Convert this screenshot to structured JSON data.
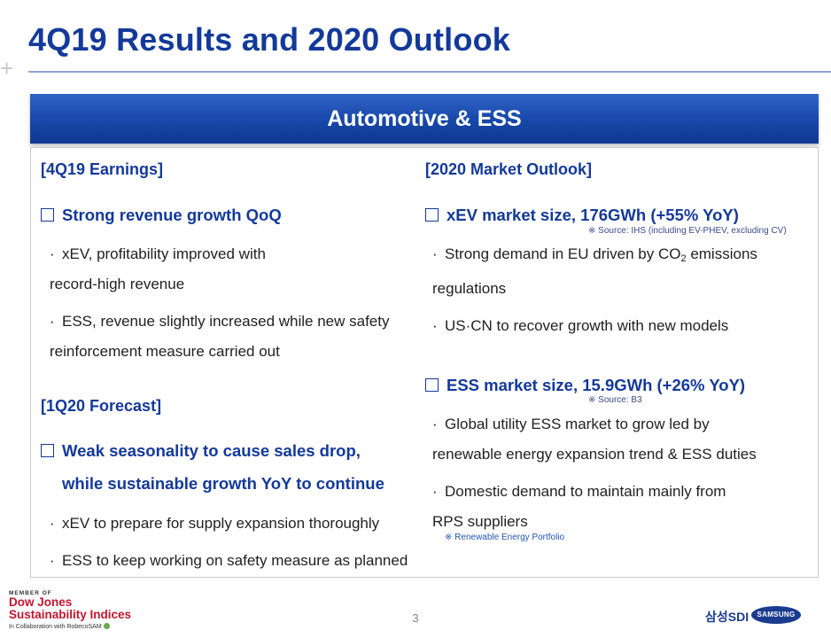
{
  "title": "4Q19 Results and 2020 Outlook",
  "banner": "Automotive & ESS",
  "left": {
    "earnings": {
      "section": "[4Q19 Earnings]",
      "headline": "Strong revenue growth QoQ",
      "bullets": [
        [
          "xEV, profitability improved with",
          "record-high revenue"
        ],
        [
          "ESS, revenue slightly increased while new safety",
          "reinforcement measure carried out"
        ]
      ]
    },
    "forecast": {
      "section": "[1Q20 Forecast]",
      "headline": [
        "Weak seasonality to cause sales drop,",
        "while sustainable growth YoY to continue"
      ],
      "bullets": [
        "xEV to prepare for supply expansion thoroughly",
        "ESS to keep working on safety measure as planned"
      ]
    }
  },
  "right": {
    "section": "[2020 Market Outlook]",
    "xev": {
      "headline": "xEV market size, 176GWh (+55% YoY)",
      "source": "※ Source: IHS (including EV-PHEV, excluding CV)",
      "bullet1": {
        "pre": "Strong demand in EU driven by CO",
        "sub": "2",
        "post": " emissions",
        "line2": "regulations"
      },
      "bullet2": "US·CN to recover growth with new models"
    },
    "ess": {
      "headline": "ESS market size, 15.9GWh (+26% YoY)",
      "source": "※ Source: B3",
      "bullet1": [
        "Global utility ESS market to grow led by",
        "renewable energy expansion trend & ESS duties"
      ],
      "bullet2": [
        "Domestic demand to maintain mainly from",
        "RPS suppliers"
      ],
      "note": "※ Renewable Energy Portfolio"
    }
  },
  "footer": {
    "member": "MEMBER OF",
    "djsi_line1": "Dow Jones",
    "djsi_line2": "Sustainability Indices",
    "collab": "In Collaboration with RobecoSAM",
    "page": "3",
    "sdi": "삼성SDI",
    "samsung": "SAMSUNG"
  }
}
